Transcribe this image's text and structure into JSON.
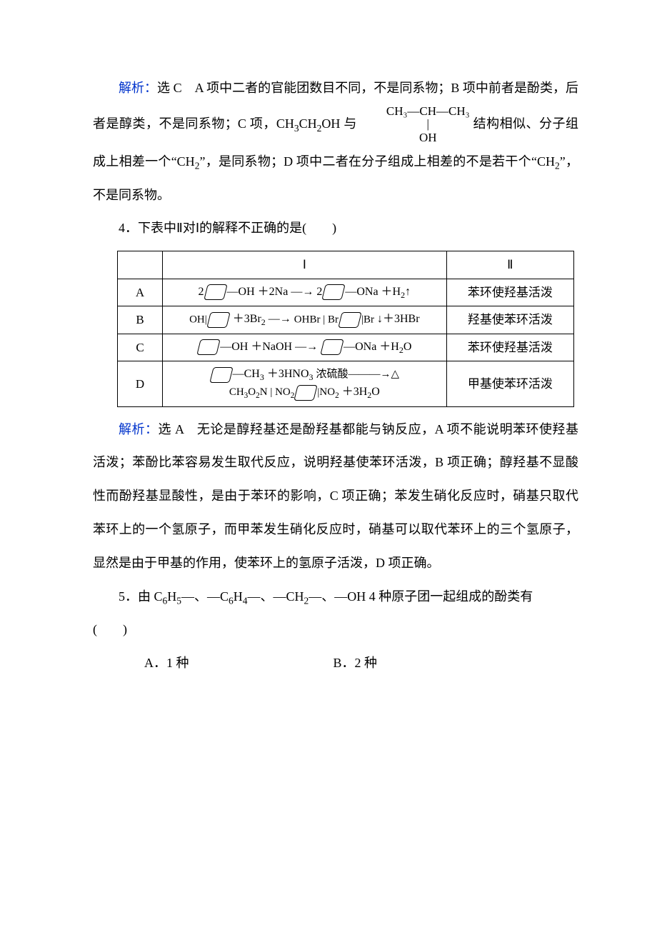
{
  "colors": {
    "text": "#000000",
    "accent_blue": "#0033cc",
    "background": "#ffffff",
    "table_border": "#000000"
  },
  "typography": {
    "body_font": "SimSun",
    "latin_font": "Times New Roman",
    "body_size_pt": 14,
    "line_height": 2.6
  },
  "q3_explain": {
    "label": "解析：",
    "answer_prefix": "选 C　",
    "part1": "A 项中二者的官能团数目不同，不是同系物；B 项中前者是酚类，后者是醇类，不是同系物；C 项，CH",
    "sub1": "3",
    "mid1": "CH",
    "sub2": "2",
    "mid2": "OH 与",
    "inline_formula": {
      "top": "CH₃—CH—CH₃",
      "mid": "|",
      "bot": "OH"
    },
    "part2": "结构相似、分子组成上相差一个“CH",
    "sub3": "2",
    "part3": "”，是同系物；D 项中二者在分子组成上相差的不是若干个“CH",
    "sub4": "2",
    "part4": "”，不是同系物。"
  },
  "q4": {
    "stem": "4．下表中Ⅱ对Ⅰ的解释不正确的是(　　)",
    "table": {
      "header": {
        "c1": "",
        "c2": "Ⅰ",
        "c3": "Ⅱ"
      },
      "rows": [
        {
          "label": "A",
          "eq_html": "2<span class='ring'></span>—OH ＋2Na —→ 2<span class='ring'></span>—ONa ＋H<span class='sub'>2</span>↑",
          "expl": "苯环使羟基活泼"
        },
        {
          "label": "B",
          "eq_html": "<span class='stack'><span>OH</span><span>|</span><span class='ring'></span></span> ＋3Br<span class='sub'>2</span> —→ <span class='stack'><span>OH</span><span>Br&nbsp;|&nbsp;Br</span><span class='ring'></span><span>|</span><span>Br</span></span> ↓＋3HBr",
          "expl": "羟基使苯环活泼"
        },
        {
          "label": "C",
          "eq_html": "<span class='ring'></span>—OH ＋NaOH —→ <span class='ring'></span>—ONa ＋H<span class='sub'>2</span>O",
          "expl": "苯环使羟基活泼"
        },
        {
          "label": "D",
          "eq_html": "<span class='ring'></span>—CH<span class='sub'>3</span> ＋3HNO<span class='sub'>3</span> <span class='cond'><span>浓硫酸</span><span>———→</span><span class='tri'>△</span></span><br><span class='stack'><span>CH<span class='sub'>3</span></span><span>O<span class='sub'>2</span>N&nbsp;|&nbsp;NO<span class='sub'>2</span></span><span class='ring'></span><span>|</span><span>NO<span class='sub'>2</span></span></span> ＋3H<span class='sub'>2</span>O",
          "expl": "甲基使苯环活泼"
        }
      ]
    },
    "explain": {
      "label": "解析：",
      "answer_prefix": "选 A　",
      "body": "无论是醇羟基还是酚羟基都能与钠反应，A 项不能说明苯环使羟基活泼；苯酚比苯容易发生取代反应，说明羟基使苯环活泼，B 项正确；醇羟基不显酸性而酚羟基显酸性，是由于苯环的影响，C 项正确；苯发生硝化反应时，硝基只取代苯环上的一个氢原子，而甲苯发生硝化反应时，硝基可以取代苯环上的三个氢原子，显然是由于甲基的作用，使苯环上的氢原子活泼，D 项正确。"
    }
  },
  "q5": {
    "stem_p1": "5．由 C",
    "s1": "6",
    "stem_p2": "H",
    "s2": "5",
    "stem_p3": "—、—C",
    "s3": "6",
    "stem_p4": "H",
    "s4": "4",
    "stem_p5": "—、—CH",
    "s5": "2",
    "stem_p6": "—、—OH 4 种原子团一起组成的酚类有",
    "paren": "(　　)",
    "opts": {
      "A": "A．1 种",
      "B": "B．2 种"
    }
  }
}
